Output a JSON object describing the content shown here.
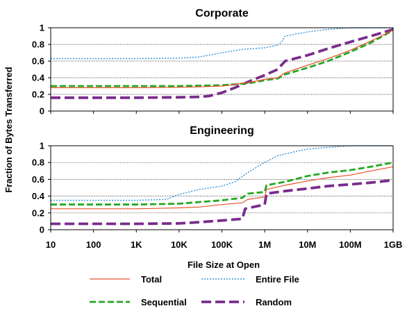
{
  "chart_data": {
    "type": "line",
    "xlabel": "File Size at Open",
    "ylabel": "Fraction of Bytes Transferred",
    "x_scale": "log",
    "x_tick_labels": [
      "10",
      "100",
      "1K",
      "10K",
      "100K",
      "1M",
      "10M",
      "100M",
      "1GB"
    ],
    "x_tick_values": [
      10,
      100,
      1000,
      10000,
      100000,
      1000000,
      10000000,
      100000000,
      1000000000
    ],
    "xlim": [
      10,
      1000000000
    ],
    "legend_placement": "bottom",
    "legend": [
      {
        "name": "Total",
        "color": "#e8502a",
        "style": "solid"
      },
      {
        "name": "Entire File",
        "color": "#2f8fd6",
        "style": "dotted"
      },
      {
        "name": "Sequential",
        "color": "#22a822",
        "style": "dashed"
      },
      {
        "name": "Random",
        "color": "#7a2c8c",
        "style": "long-dashed"
      }
    ],
    "panels": [
      {
        "title": "Corporate",
        "ylim": [
          0,
          1
        ],
        "y_ticks": [
          "0",
          "0.2",
          "0.4",
          "0.6",
          "0.8",
          "1"
        ],
        "grid": true,
        "series": [
          {
            "name": "Total",
            "x": [
              10,
              1000,
              10000,
              30000,
              100000,
              200000,
              500000,
              1000000,
              2000000,
              3000000,
              10000000,
              30000000,
              100000000,
              300000000,
              1000000000
            ],
            "y": [
              0.28,
              0.28,
              0.285,
              0.29,
              0.3,
              0.32,
              0.35,
              0.38,
              0.4,
              0.46,
              0.55,
              0.63,
              0.73,
              0.84,
              0.97
            ]
          },
          {
            "name": "Entire File",
            "x": [
              10,
              1000,
              10000,
              30000,
              100000,
              300000,
              1000000,
              2000000,
              2500000,
              3000000,
              10000000,
              30000000,
              100000000,
              1000000000
            ],
            "y": [
              0.63,
              0.63,
              0.635,
              0.65,
              0.7,
              0.74,
              0.76,
              0.79,
              0.83,
              0.9,
              0.95,
              0.98,
              1.0,
              1.0
            ]
          },
          {
            "name": "Sequential",
            "x": [
              10,
              1000,
              10000,
              30000,
              100000,
              200000,
              500000,
              1000000,
              2000000,
              3000000,
              10000000,
              30000000,
              100000000,
              300000000,
              1000000000
            ],
            "y": [
              0.3,
              0.3,
              0.3,
              0.305,
              0.31,
              0.32,
              0.34,
              0.37,
              0.39,
              0.44,
              0.52,
              0.6,
              0.71,
              0.82,
              0.97
            ]
          },
          {
            "name": "Random",
            "x": [
              10,
              1000,
              10000,
              30000,
              50000,
              100000,
              200000,
              500000,
              1000000,
              2000000,
              3000000,
              10000000,
              30000000,
              100000000,
              300000000,
              1000000000
            ],
            "y": [
              0.16,
              0.16,
              0.165,
              0.17,
              0.18,
              0.22,
              0.28,
              0.37,
              0.43,
              0.5,
              0.6,
              0.67,
              0.75,
              0.83,
              0.9,
              0.98
            ]
          }
        ]
      },
      {
        "title": "Engineering",
        "ylim": [
          0,
          1
        ],
        "y_ticks": [
          "0",
          "0.2",
          "0.4",
          "0.6",
          "0.8",
          "1"
        ],
        "grid": true,
        "series": [
          {
            "name": "Total",
            "x": [
              10,
              1000,
              10000,
              30000,
              100000,
              300000,
              400000,
              1000000,
              1100000,
              3000000,
              10000000,
              30000000,
              100000000,
              300000000,
              1000000000
            ],
            "y": [
              0.25,
              0.25,
              0.26,
              0.27,
              0.3,
              0.32,
              0.36,
              0.39,
              0.48,
              0.53,
              0.58,
              0.62,
              0.65,
              0.7,
              0.75
            ]
          },
          {
            "name": "Entire File",
            "x": [
              10,
              1000,
              5000,
              10000,
              30000,
              100000,
              200000,
              400000,
              1000000,
              2000000,
              5000000,
              10000000,
              30000000,
              100000000,
              1000000000
            ],
            "y": [
              0.35,
              0.35,
              0.36,
              0.42,
              0.48,
              0.52,
              0.57,
              0.68,
              0.8,
              0.88,
              0.93,
              0.96,
              0.98,
              1.0,
              1.0
            ]
          },
          {
            "name": "Sequential",
            "x": [
              10,
              1000,
              10000,
              30000,
              100000,
              300000,
              400000,
              1000000,
              1100000,
              3000000,
              10000000,
              30000000,
              100000000,
              300000000,
              1000000000
            ],
            "y": [
              0.3,
              0.3,
              0.31,
              0.33,
              0.35,
              0.38,
              0.43,
              0.45,
              0.53,
              0.57,
              0.64,
              0.68,
              0.71,
              0.75,
              0.8
            ]
          },
          {
            "name": "Random",
            "x": [
              10,
              1000,
              10000,
              30000,
              100000,
              300000,
              350000,
              1000000,
              1100000,
              3000000,
              10000000,
              30000000,
              100000000,
              300000000,
              1000000000
            ],
            "y": [
              0.07,
              0.07,
              0.075,
              0.09,
              0.11,
              0.13,
              0.25,
              0.3,
              0.43,
              0.46,
              0.49,
              0.52,
              0.54,
              0.56,
              0.59
            ]
          }
        ]
      }
    ]
  }
}
